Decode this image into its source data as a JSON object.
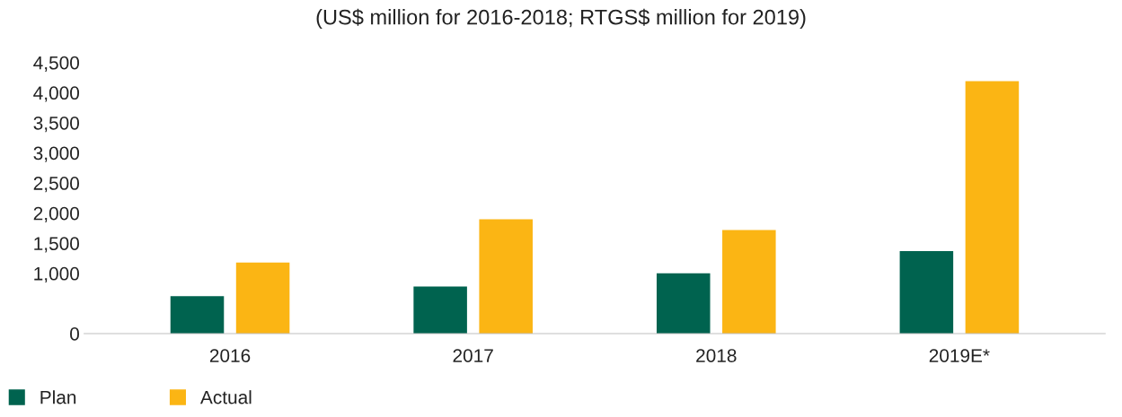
{
  "chart_data": {
    "type": "bar",
    "title": "(US$ million for 2016-2018; RTGS$ million for 2019)",
    "categories": [
      "2016",
      "2017",
      "2018",
      "2019E*"
    ],
    "series": [
      {
        "name": "Plan",
        "color": "#00634f",
        "values": [
          620,
          780,
          1000,
          1370
        ]
      },
      {
        "name": "Actual",
        "color": "#fbb514",
        "values": [
          1180,
          1900,
          1720,
          4190
        ]
      }
    ],
    "ylim": [
      0,
      4500
    ],
    "yticks": [
      {
        "value": 0,
        "label": "0"
      },
      {
        "value": 1000,
        "label": "1,000"
      },
      {
        "value": 1500,
        "label": "1,500"
      },
      {
        "value": 2000,
        "label": "2,000"
      },
      {
        "value": 2500,
        "label": "2,500"
      },
      {
        "value": 3000,
        "label": "3,000"
      },
      {
        "value": 3500,
        "label": "3,500"
      },
      {
        "value": 4000,
        "label": "4,000"
      },
      {
        "value": 4500,
        "label": "4,500"
      }
    ],
    "grid": false,
    "legend": "bottom left"
  }
}
